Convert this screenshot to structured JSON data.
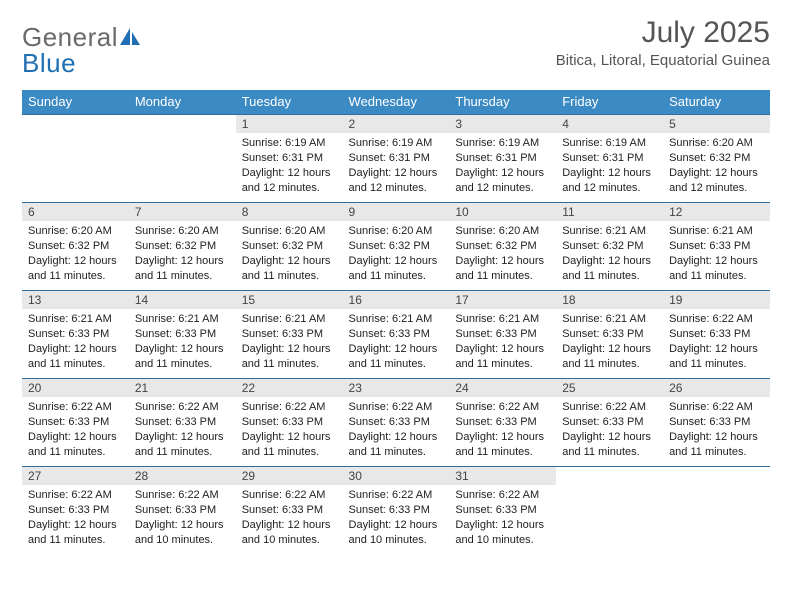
{
  "logo": {
    "text_a": "General",
    "text_b": "Blue"
  },
  "header": {
    "month_title": "July 2025",
    "location": "Bitica, Litoral, Equatorial Guinea"
  },
  "colors": {
    "header_blue": "#3b8ac4",
    "row_border": "#2f6fa0",
    "daynum_bg": "#e8e8e8",
    "logo_blue": "#1f6fb2"
  },
  "weekdays": [
    "Sunday",
    "Monday",
    "Tuesday",
    "Wednesday",
    "Thursday",
    "Friday",
    "Saturday"
  ],
  "weeks": [
    [
      null,
      null,
      {
        "n": 1,
        "sr": "6:19 AM",
        "ss": "6:31 PM",
        "dl": "12 hours and 12 minutes."
      },
      {
        "n": 2,
        "sr": "6:19 AM",
        "ss": "6:31 PM",
        "dl": "12 hours and 12 minutes."
      },
      {
        "n": 3,
        "sr": "6:19 AM",
        "ss": "6:31 PM",
        "dl": "12 hours and 12 minutes."
      },
      {
        "n": 4,
        "sr": "6:19 AM",
        "ss": "6:31 PM",
        "dl": "12 hours and 12 minutes."
      },
      {
        "n": 5,
        "sr": "6:20 AM",
        "ss": "6:32 PM",
        "dl": "12 hours and 12 minutes."
      }
    ],
    [
      {
        "n": 6,
        "sr": "6:20 AM",
        "ss": "6:32 PM",
        "dl": "12 hours and 11 minutes."
      },
      {
        "n": 7,
        "sr": "6:20 AM",
        "ss": "6:32 PM",
        "dl": "12 hours and 11 minutes."
      },
      {
        "n": 8,
        "sr": "6:20 AM",
        "ss": "6:32 PM",
        "dl": "12 hours and 11 minutes."
      },
      {
        "n": 9,
        "sr": "6:20 AM",
        "ss": "6:32 PM",
        "dl": "12 hours and 11 minutes."
      },
      {
        "n": 10,
        "sr": "6:20 AM",
        "ss": "6:32 PM",
        "dl": "12 hours and 11 minutes."
      },
      {
        "n": 11,
        "sr": "6:21 AM",
        "ss": "6:32 PM",
        "dl": "12 hours and 11 minutes."
      },
      {
        "n": 12,
        "sr": "6:21 AM",
        "ss": "6:33 PM",
        "dl": "12 hours and 11 minutes."
      }
    ],
    [
      {
        "n": 13,
        "sr": "6:21 AM",
        "ss": "6:33 PM",
        "dl": "12 hours and 11 minutes."
      },
      {
        "n": 14,
        "sr": "6:21 AM",
        "ss": "6:33 PM",
        "dl": "12 hours and 11 minutes."
      },
      {
        "n": 15,
        "sr": "6:21 AM",
        "ss": "6:33 PM",
        "dl": "12 hours and 11 minutes."
      },
      {
        "n": 16,
        "sr": "6:21 AM",
        "ss": "6:33 PM",
        "dl": "12 hours and 11 minutes."
      },
      {
        "n": 17,
        "sr": "6:21 AM",
        "ss": "6:33 PM",
        "dl": "12 hours and 11 minutes."
      },
      {
        "n": 18,
        "sr": "6:21 AM",
        "ss": "6:33 PM",
        "dl": "12 hours and 11 minutes."
      },
      {
        "n": 19,
        "sr": "6:22 AM",
        "ss": "6:33 PM",
        "dl": "12 hours and 11 minutes."
      }
    ],
    [
      {
        "n": 20,
        "sr": "6:22 AM",
        "ss": "6:33 PM",
        "dl": "12 hours and 11 minutes."
      },
      {
        "n": 21,
        "sr": "6:22 AM",
        "ss": "6:33 PM",
        "dl": "12 hours and 11 minutes."
      },
      {
        "n": 22,
        "sr": "6:22 AM",
        "ss": "6:33 PM",
        "dl": "12 hours and 11 minutes."
      },
      {
        "n": 23,
        "sr": "6:22 AM",
        "ss": "6:33 PM",
        "dl": "12 hours and 11 minutes."
      },
      {
        "n": 24,
        "sr": "6:22 AM",
        "ss": "6:33 PM",
        "dl": "12 hours and 11 minutes."
      },
      {
        "n": 25,
        "sr": "6:22 AM",
        "ss": "6:33 PM",
        "dl": "12 hours and 11 minutes."
      },
      {
        "n": 26,
        "sr": "6:22 AM",
        "ss": "6:33 PM",
        "dl": "12 hours and 11 minutes."
      }
    ],
    [
      {
        "n": 27,
        "sr": "6:22 AM",
        "ss": "6:33 PM",
        "dl": "12 hours and 11 minutes."
      },
      {
        "n": 28,
        "sr": "6:22 AM",
        "ss": "6:33 PM",
        "dl": "12 hours and 10 minutes."
      },
      {
        "n": 29,
        "sr": "6:22 AM",
        "ss": "6:33 PM",
        "dl": "12 hours and 10 minutes."
      },
      {
        "n": 30,
        "sr": "6:22 AM",
        "ss": "6:33 PM",
        "dl": "12 hours and 10 minutes."
      },
      {
        "n": 31,
        "sr": "6:22 AM",
        "ss": "6:33 PM",
        "dl": "12 hours and 10 minutes."
      },
      null,
      null
    ]
  ],
  "labels": {
    "sunrise": "Sunrise:",
    "sunset": "Sunset:",
    "daylight": "Daylight:"
  }
}
